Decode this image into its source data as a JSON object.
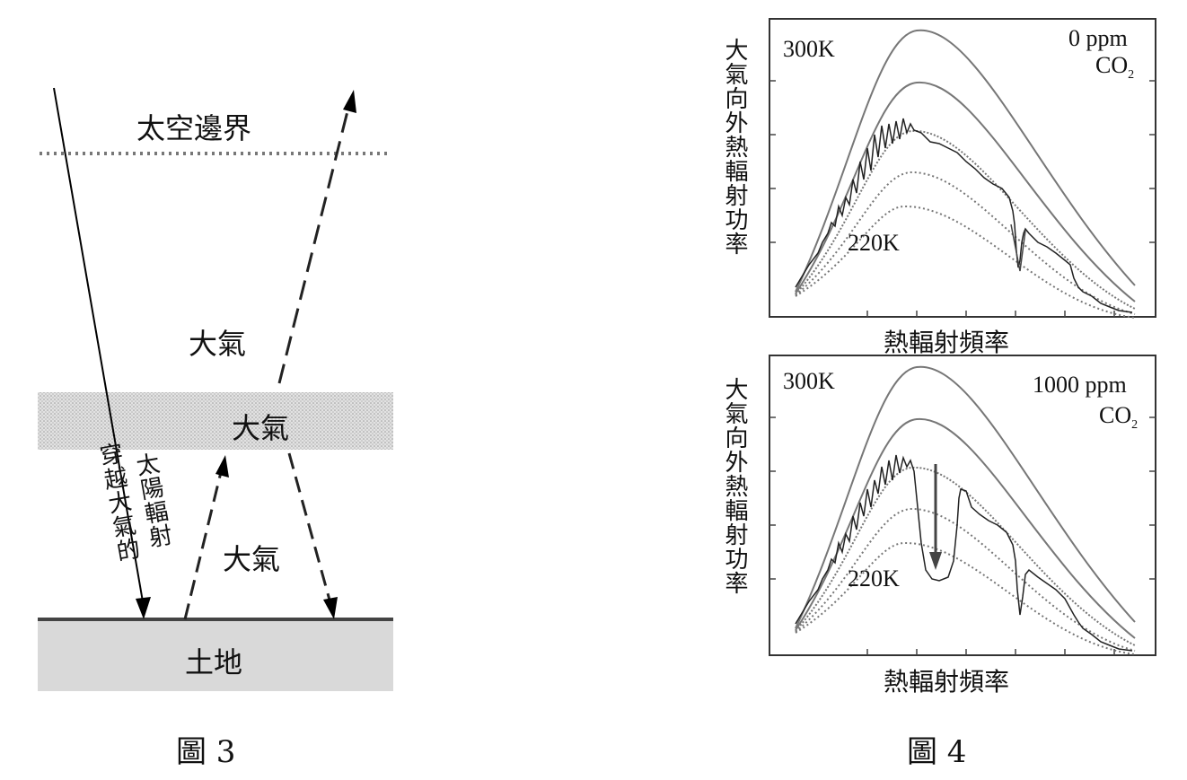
{
  "fig3": {
    "caption": "圖 3",
    "space_boundary": "太空邊界",
    "atmosphere_upper": "大氣",
    "atmosphere_band": "大氣",
    "atmosphere_lower": "大氣",
    "ground": "土地",
    "solar_label_1": "太陽輻射",
    "solar_label_2": "穿越大氣的"
  },
  "fig4": {
    "caption": "圖 4",
    "top": {
      "ylabel": "大氣向外熱輻射功率",
      "xlabel": "熱輻射頻率",
      "label_300k": "300K",
      "label_220k": "220K",
      "co2_ppm": "0 ppm",
      "co2_formula": "CO",
      "co2_sub": "2"
    },
    "bottom": {
      "ylabel": "大氣向外熱輻射功率",
      "xlabel": "熱輻射頻率",
      "label_300k": "300K",
      "label_220k": "220K",
      "co2_ppm": "1000 ppm",
      "co2_formula": "CO",
      "co2_sub": "2"
    }
  }
}
